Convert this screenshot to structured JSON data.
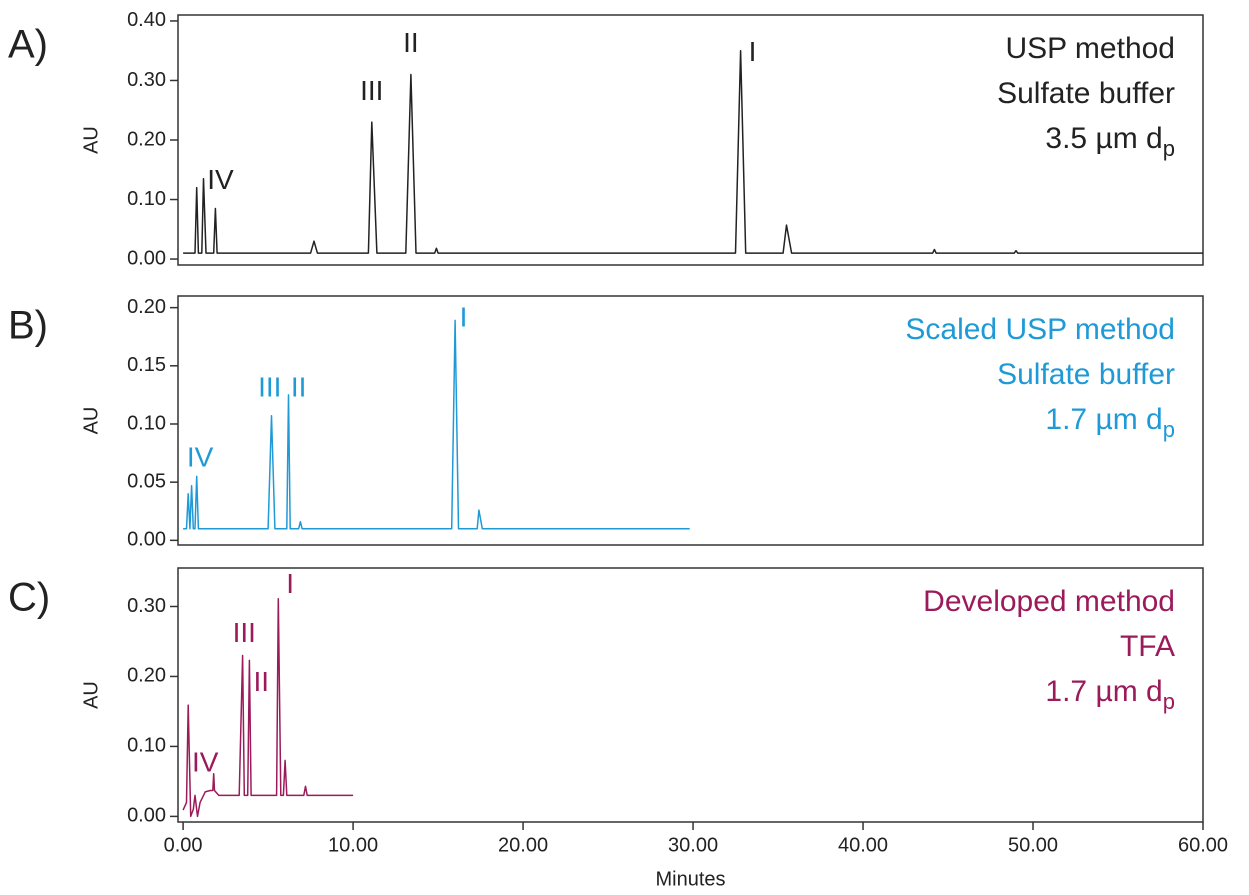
{
  "chart_data": [
    {
      "type": "line",
      "panel": "A)",
      "ylabel": "AU",
      "color": "#222222",
      "method_label": [
        "USP method",
        "Sulfate buffer"
      ],
      "particle_size": {
        "text": "3.5 µm d",
        "subscript": "p"
      },
      "xlim": [
        -0.3,
        60
      ],
      "ylim": [
        -0.01,
        0.41
      ],
      "yticks": [
        {
          "value": 0,
          "label": "0.00"
        },
        {
          "value": 0.1,
          "label": "0.10"
        },
        {
          "value": 0.2,
          "label": "0.20"
        },
        {
          "value": 0.3,
          "label": "0.30"
        },
        {
          "value": 0.4,
          "label": "0.40"
        }
      ],
      "x": [
        0,
        0.7,
        0.8,
        0.9,
        1.1,
        1.2,
        1.35,
        1.8,
        1.9,
        2.0,
        2.3,
        7.5,
        7.7,
        7.9,
        10.9,
        11.1,
        11.4,
        13.1,
        13.4,
        13.7,
        14.8,
        14.9,
        15.0,
        32.5,
        32.8,
        33.1,
        35.3,
        35.5,
        35.8,
        44.1,
        44.2,
        44.3,
        48.9,
        49.0,
        49.1,
        60
      ],
      "values": [
        0.01,
        0.01,
        0.12,
        0.01,
        0.01,
        0.135,
        0.01,
        0.01,
        0.085,
        0.01,
        0.01,
        0.01,
        0.03,
        0.01,
        0.01,
        0.23,
        0.01,
        0.01,
        0.31,
        0.01,
        0.01,
        0.018,
        0.01,
        0.01,
        0.35,
        0.01,
        0.01,
        0.057,
        0.01,
        0.01,
        0.016,
        0.01,
        0.01,
        0.014,
        0.01,
        0.01
      ],
      "annotations": [
        {
          "text": "IV",
          "x": 2.2,
          "y": 0.13
        },
        {
          "text": "III",
          "x": 11.1,
          "y": 0.28
        },
        {
          "text": "II",
          "x": 13.4,
          "y": 0.36
        },
        {
          "text": "I",
          "x": 33.5,
          "y": 0.345
        }
      ]
    },
    {
      "type": "line",
      "panel": "B)",
      "ylabel": "AU",
      "color": "#1f9ad6",
      "method_label": [
        "Scaled USP method",
        "Sulfate buffer"
      ],
      "particle_size": {
        "text": "1.7 µm d",
        "subscript": "p"
      },
      "xlim": [
        -0.3,
        60
      ],
      "ylim": [
        -0.004,
        0.21
      ],
      "yticks": [
        {
          "value": 0,
          "label": "0.00"
        },
        {
          "value": 0.05,
          "label": "0.05"
        },
        {
          "value": 0.1,
          "label": "0.10"
        },
        {
          "value": 0.15,
          "label": "0.15"
        },
        {
          "value": 0.2,
          "label": "0.20"
        }
      ],
      "x": [
        0,
        0.2,
        0.3,
        0.4,
        0.5,
        0.6,
        0.7,
        0.8,
        0.9,
        5.0,
        5.2,
        5.4,
        6.1,
        6.2,
        6.3,
        6.8,
        6.9,
        7.0,
        15.8,
        16.0,
        16.2,
        17.3,
        17.4,
        17.6,
        29.8
      ],
      "values": [
        0.01,
        0.01,
        0.04,
        0.01,
        0.047,
        0.01,
        0.01,
        0.055,
        0.01,
        0.01,
        0.107,
        0.01,
        0.01,
        0.125,
        0.01,
        0.01,
        0.016,
        0.01,
        0.01,
        0.189,
        0.01,
        0.01,
        0.026,
        0.01,
        0.01
      ],
      "annotations": [
        {
          "text": "IV",
          "x": 1.0,
          "y": 0.07
        },
        {
          "text": "III",
          "x": 5.1,
          "y": 0.13
        },
        {
          "text": "II",
          "x": 6.8,
          "y": 0.13
        },
        {
          "text": "I",
          "x": 16.5,
          "y": 0.19
        }
      ]
    },
    {
      "type": "line",
      "panel": "C)",
      "ylabel": "AU",
      "color": "#9b1b5a",
      "xlabel": "Minutes",
      "method_label": [
        "Developed method",
        "TFA"
      ],
      "particle_size": {
        "text": "1.7 µm d",
        "subscript": "p"
      },
      "xlim": [
        -0.3,
        60
      ],
      "ylim": [
        -0.008,
        0.355
      ],
      "yticks": [
        {
          "value": 0,
          "label": "0.00"
        },
        {
          "value": 0.1,
          "label": "0.10"
        },
        {
          "value": 0.2,
          "label": "0.20"
        },
        {
          "value": 0.3,
          "label": "0.30"
        }
      ],
      "xticks": [
        {
          "value": 0,
          "label": "0.00"
        },
        {
          "value": 10,
          "label": "10.00"
        },
        {
          "value": 20,
          "label": "20.00"
        },
        {
          "value": 30,
          "label": "30.00"
        },
        {
          "value": 40,
          "label": "40.00"
        },
        {
          "value": 50,
          "label": "50.00"
        },
        {
          "value": 60,
          "label": "60.00"
        }
      ],
      "x": [
        0,
        0.2,
        0.3,
        0.45,
        0.6,
        0.7,
        0.85,
        1.0,
        1.3,
        1.6,
        1.75,
        1.8,
        1.85,
        2.1,
        3.3,
        3.5,
        3.6,
        3.8,
        3.9,
        4.0,
        5.5,
        5.6,
        5.75,
        5.9,
        6.0,
        6.1,
        7.1,
        7.2,
        7.3,
        10
      ],
      "values": [
        0.009,
        0.02,
        0.159,
        0.0,
        0.01,
        0.03,
        0.0,
        0.02,
        0.035,
        0.037,
        0.037,
        0.061,
        0.037,
        0.03,
        0.03,
        0.23,
        0.03,
        0.03,
        0.223,
        0.03,
        0.03,
        0.311,
        0.03,
        0.03,
        0.08,
        0.03,
        0.03,
        0.043,
        0.03,
        0.03
      ],
      "annotations": [
        {
          "text": "IV",
          "x": 1.3,
          "y": 0.075
        },
        {
          "text": "III",
          "x": 3.6,
          "y": 0.26
        },
        {
          "text": "II",
          "x": 4.6,
          "y": 0.19
        },
        {
          "text": "I",
          "x": 6.3,
          "y": 0.33
        }
      ]
    }
  ]
}
